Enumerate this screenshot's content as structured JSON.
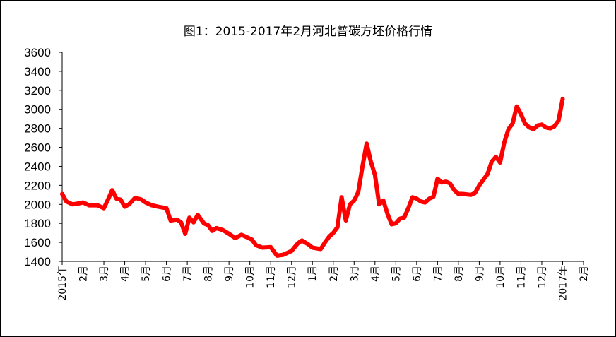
{
  "chart_data": {
    "type": "line",
    "title": "图1：2015-2017年2月河北普碳方坯价格行情",
    "xlabel": "",
    "ylabel": "",
    "ylim": [
      1400,
      3600
    ],
    "yticks": [
      1400,
      1600,
      1800,
      2000,
      2200,
      2400,
      2600,
      2800,
      3000,
      3200,
      3400,
      3600
    ],
    "x_tick_labels": [
      "2015年",
      "2月",
      "3月",
      "4月",
      "5月",
      "6月",
      "7月",
      "8月",
      "9月",
      "10月",
      "11月",
      "12月",
      "1月",
      "2月",
      "3月",
      "4月",
      "5月",
      "6月",
      "7月",
      "8月",
      "9月",
      "10月",
      "11月",
      "12月",
      "2017年",
      "2月"
    ],
    "x_tick_positions": [
      0,
      1,
      2,
      3,
      4,
      5,
      6,
      7,
      8,
      9,
      10,
      11,
      12,
      13,
      14,
      15,
      16,
      17,
      18,
      19,
      20,
      21,
      22,
      23,
      24,
      25
    ],
    "x_range": [
      0,
      25
    ],
    "line_color": "#ff0000",
    "grid": false,
    "legend": "none",
    "series": [
      {
        "points": [
          [
            0,
            2110
          ],
          [
            0.2,
            2030
          ],
          [
            0.5,
            2000
          ],
          [
            0.8,
            2010
          ],
          [
            1.0,
            2020
          ],
          [
            1.3,
            1990
          ],
          [
            1.7,
            1990
          ],
          [
            2.0,
            1960
          ],
          [
            2.2,
            2050
          ],
          [
            2.4,
            2150
          ],
          [
            2.6,
            2060
          ],
          [
            2.8,
            2050
          ],
          [
            3.0,
            1975
          ],
          [
            3.2,
            2000
          ],
          [
            3.5,
            2070
          ],
          [
            3.8,
            2050
          ],
          [
            4.0,
            2020
          ],
          [
            4.3,
            1990
          ],
          [
            4.6,
            1975
          ],
          [
            5.0,
            1960
          ],
          [
            5.2,
            1830
          ],
          [
            5.5,
            1840
          ],
          [
            5.7,
            1810
          ],
          [
            5.9,
            1690
          ],
          [
            6.1,
            1860
          ],
          [
            6.3,
            1810
          ],
          [
            6.5,
            1890
          ],
          [
            6.8,
            1800
          ],
          [
            7.0,
            1780
          ],
          [
            7.2,
            1720
          ],
          [
            7.4,
            1750
          ],
          [
            7.7,
            1730
          ],
          [
            8.0,
            1690
          ],
          [
            8.3,
            1645
          ],
          [
            8.6,
            1680
          ],
          [
            8.9,
            1650
          ],
          [
            9.1,
            1630
          ],
          [
            9.3,
            1570
          ],
          [
            9.6,
            1545
          ],
          [
            10.0,
            1550
          ],
          [
            10.3,
            1460
          ],
          [
            10.6,
            1470
          ],
          [
            11.0,
            1510
          ],
          [
            11.3,
            1590
          ],
          [
            11.5,
            1620
          ],
          [
            11.8,
            1580
          ],
          [
            12.0,
            1545
          ],
          [
            12.4,
            1530
          ],
          [
            12.6,
            1600
          ],
          [
            12.8,
            1660
          ],
          [
            13.0,
            1700
          ],
          [
            13.2,
            1760
          ],
          [
            13.4,
            2075
          ],
          [
            13.6,
            1830
          ],
          [
            13.8,
            2000
          ],
          [
            14.0,
            2040
          ],
          [
            14.2,
            2130
          ],
          [
            14.4,
            2400
          ],
          [
            14.6,
            2640
          ],
          [
            14.8,
            2450
          ],
          [
            15.0,
            2310
          ],
          [
            15.2,
            2000
          ],
          [
            15.4,
            2040
          ],
          [
            15.6,
            1900
          ],
          [
            15.8,
            1790
          ],
          [
            16.0,
            1800
          ],
          [
            16.2,
            1850
          ],
          [
            16.4,
            1860
          ],
          [
            16.6,
            1960
          ],
          [
            16.8,
            2075
          ],
          [
            17.0,
            2060
          ],
          [
            17.2,
            2030
          ],
          [
            17.4,
            2020
          ],
          [
            17.6,
            2060
          ],
          [
            17.8,
            2080
          ],
          [
            18.0,
            2270
          ],
          [
            18.2,
            2230
          ],
          [
            18.4,
            2240
          ],
          [
            18.6,
            2220
          ],
          [
            18.8,
            2150
          ],
          [
            19.0,
            2110
          ],
          [
            19.2,
            2110
          ],
          [
            19.6,
            2100
          ],
          [
            19.8,
            2120
          ],
          [
            20.0,
            2200
          ],
          [
            20.2,
            2260
          ],
          [
            20.4,
            2320
          ],
          [
            20.6,
            2450
          ],
          [
            20.8,
            2500
          ],
          [
            21.0,
            2440
          ],
          [
            21.2,
            2650
          ],
          [
            21.4,
            2790
          ],
          [
            21.6,
            2850
          ],
          [
            21.8,
            3030
          ],
          [
            22.0,
            2950
          ],
          [
            22.2,
            2850
          ],
          [
            22.4,
            2810
          ],
          [
            22.6,
            2790
          ],
          [
            22.8,
            2830
          ],
          [
            23.0,
            2840
          ],
          [
            23.2,
            2810
          ],
          [
            23.4,
            2800
          ],
          [
            23.6,
            2820
          ],
          [
            23.8,
            2880
          ],
          [
            24.0,
            3110
          ]
        ]
      }
    ]
  }
}
